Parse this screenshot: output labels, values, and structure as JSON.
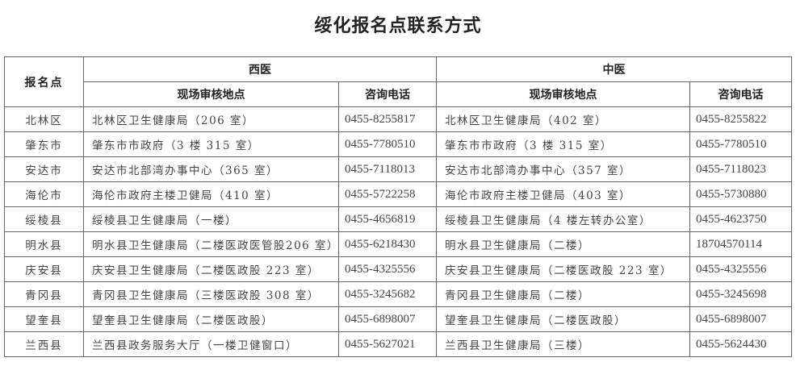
{
  "title": "绥化报名点联系方式",
  "headers": {
    "site": "报名点",
    "western": "西医",
    "chinese": "中医",
    "address": "现场审核地点",
    "phone": "咨询电话"
  },
  "rows": [
    {
      "site": "北林区",
      "w_addr": "北林区卫生健康局（206 室）",
      "w_phone": "0455-8255817",
      "c_addr": "北林区卫生健康局（402 室）",
      "c_phone": "0455-8255822"
    },
    {
      "site": "肇东市",
      "w_addr": "肇东市市政府（3 楼 315 室）",
      "w_phone": "0455-7780510",
      "c_addr": "肇东市市政府（3 楼 315 室）",
      "c_phone": "0455-7780510"
    },
    {
      "site": "安达市",
      "w_addr": "安达市北部湾办事中心（365 室）",
      "w_phone": "0455-7118013",
      "c_addr": "安达市北部湾办事中心（357 室）",
      "c_phone": "0455-7118023"
    },
    {
      "site": "海伦市",
      "w_addr": "海伦市政府主楼卫健局（410 室）",
      "w_phone": "0455-5722258",
      "c_addr": "海伦市政府主楼卫健局（403 室）",
      "c_phone": "0455-5730880"
    },
    {
      "site": "绥棱县",
      "w_addr": "绥棱县卫生健康局（一楼）",
      "w_phone": "0455-4656819",
      "c_addr": "绥棱县卫生健康局（4 楼左转办公室）",
      "c_phone": "0455-4623750"
    },
    {
      "site": "明水县",
      "w_addr": "明水县卫生健康局（二楼医政医管股206 室）",
      "w_phone": "0455-6218430",
      "c_addr": "明水县卫生健康局（二楼）",
      "c_phone": "18704570114"
    },
    {
      "site": "庆安县",
      "w_addr": "庆安县卫生健康局（二楼医政股 223 室）",
      "w_phone": "0455-4325556",
      "c_addr": "庆安县卫生健康局（二楼医政股 223 室）",
      "c_phone": "0455-4325556"
    },
    {
      "site": "青冈县",
      "w_addr": "青冈县卫生健康局（三楼医政股 308 室）",
      "w_phone": "0455-3245682",
      "c_addr": "青冈县卫生健康局（二楼）",
      "c_phone": "0455-3245698"
    },
    {
      "site": "望奎县",
      "w_addr": "望奎县卫生健康局（二楼医政股）",
      "w_phone": "0455-6898007",
      "c_addr": "望奎县卫生健康局（二楼医政股）",
      "c_phone": "0455-6898007"
    },
    {
      "site": "兰西县",
      "w_addr": "兰西县政务服务大厅（一楼卫健窗口）",
      "w_phone": "0455-5627021",
      "c_addr": "兰西县卫生健康局（三楼）",
      "c_phone": "0455-5624430"
    }
  ]
}
